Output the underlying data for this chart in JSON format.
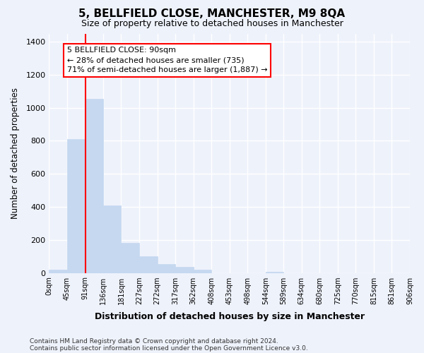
{
  "title": "5, BELLFIELD CLOSE, MANCHESTER, M9 8QA",
  "subtitle": "Size of property relative to detached houses in Manchester",
  "xlabel": "Distribution of detached houses by size in Manchester",
  "ylabel": "Number of detached properties",
  "bin_labels": [
    "0sqm",
    "45sqm",
    "91sqm",
    "136sqm",
    "181sqm",
    "227sqm",
    "272sqm",
    "317sqm",
    "362sqm",
    "408sqm",
    "453sqm",
    "498sqm",
    "544sqm",
    "589sqm",
    "634sqm",
    "680sqm",
    "725sqm",
    "770sqm",
    "815sqm",
    "861sqm",
    "906sqm"
  ],
  "bar_values": [
    20,
    810,
    1055,
    410,
    183,
    100,
    55,
    35,
    20,
    0,
    0,
    0,
    5,
    0,
    0,
    0,
    0,
    0,
    0,
    0
  ],
  "bin_width": 45,
  "bar_color": "#c5d8f0",
  "bar_edgecolor": "#c5d8f0",
  "red_line_x": 91,
  "ylim": [
    0,
    1450
  ],
  "yticks": [
    0,
    200,
    400,
    600,
    800,
    1000,
    1200,
    1400
  ],
  "annotation_text": "5 BELLFIELD CLOSE: 90sqm\n← 28% of detached houses are smaller (735)\n71% of semi-detached houses are larger (1,887) →",
  "footnote1": "Contains HM Land Registry data © Crown copyright and database right 2024.",
  "footnote2": "Contains public sector information licensed under the Open Government Licence v3.0.",
  "bg_color": "#eef2fb",
  "grid_color": "#ffffff"
}
